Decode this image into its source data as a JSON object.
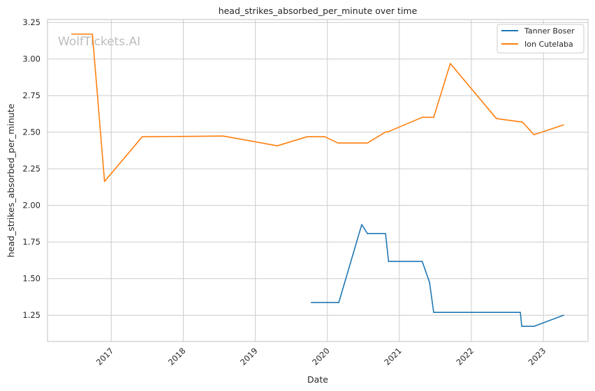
{
  "chart_data": {
    "type": "line",
    "title": "head_strikes_absorbed_per_minute over time",
    "xlabel": "Date",
    "ylabel": "head_strikes_absorbed_per_minute",
    "watermark": "WolfTickets.AI",
    "xlim": [
      "2016-02-12",
      "2023-08-15"
    ],
    "ylim": [
      1.07,
      3.27
    ],
    "x_ticks": [
      "2017",
      "2018",
      "2019",
      "2020",
      "2021",
      "2022",
      "2023"
    ],
    "y_ticks": [
      "1.25",
      "1.50",
      "1.75",
      "2.00",
      "2.25",
      "2.50",
      "2.75",
      "3.00",
      "3.25"
    ],
    "grid": true,
    "legend_position": "top-right",
    "series": [
      {
        "name": "Tanner Boser",
        "color": "#1f77b4",
        "x": [
          "2019-10-12",
          "2020-02-28",
          "2020-06-24",
          "2020-07-23",
          "2020-10-23",
          "2020-11-07",
          "2021-04-27",
          "2021-06-03",
          "2021-06-24",
          "2022-09-06",
          "2022-09-13",
          "2022-11-14",
          "2023-04-13"
        ],
        "y": [
          1.336,
          1.336,
          1.869,
          1.807,
          1.807,
          1.617,
          1.617,
          1.474,
          1.269,
          1.269,
          1.174,
          1.174,
          1.25
        ]
      },
      {
        "name": "Ion Cutelaba",
        "color": "#ff7f0e",
        "x": [
          "2016-06-14",
          "2016-09-27",
          "2016-11-28",
          "2017-06-07",
          "2018-07-23",
          "2019-04-23",
          "2019-09-20",
          "2019-12-20",
          "2020-02-24",
          "2020-07-23",
          "2020-10-23",
          "2020-11-03",
          "2021-04-27",
          "2021-06-24",
          "2021-09-16",
          "2022-05-08",
          "2022-09-17",
          "2022-11-14",
          "2023-04-13"
        ],
        "y": [
          3.17,
          3.17,
          2.164,
          2.469,
          2.474,
          2.407,
          2.469,
          2.469,
          2.426,
          2.426,
          2.502,
          2.502,
          2.602,
          2.602,
          2.969,
          2.593,
          2.569,
          2.483,
          2.55
        ]
      }
    ]
  }
}
